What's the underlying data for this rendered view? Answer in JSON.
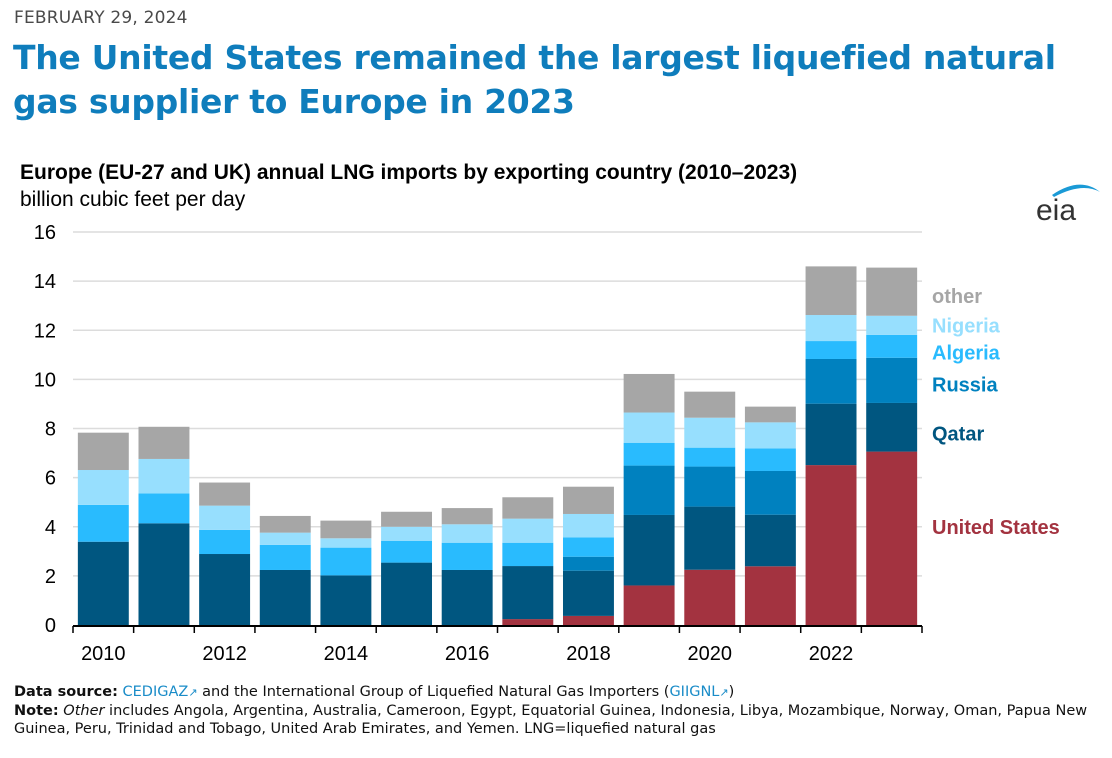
{
  "header": {
    "date": "FEBRUARY 29, 2024",
    "headline": "The United States remained the largest liquefied natural gas supplier to Europe in 2023"
  },
  "logo": {
    "text": "eia",
    "icon": "eia-logo-icon",
    "arc_color": "#1a9ad6",
    "text_color": "#333333"
  },
  "footer": {
    "source_label": "Data source:",
    "source_link1": "CEDIGAZ",
    "source_mid": " and the International Group of Liquefied Natural Gas Importers (",
    "source_link2": "GIIGNL",
    "source_end": ")",
    "note_label": "Note:",
    "note_italic": "Other",
    "note_text": " includes Angola, Argentina, Australia, Cameroon, Egypt, Equatorial Guinea, Indonesia, Libya, Mozambique, Norway, Oman, Papua New Guinea, Peru, Trinidad and Tobago, United Arab Emirates, and Yemen. LNG=liquefied natural gas",
    "external_link_icon": "external-link-icon"
  },
  "chart_data": {
    "type": "bar",
    "stacked": true,
    "title": "Europe (EU-27 and UK) annual LNG imports by exporting country (2010–2023)",
    "subtitle": "billion cubic feet per day",
    "xlabel": "",
    "ylabel": "billion cubic feet per day",
    "ylim": [
      0,
      16
    ],
    "yticks": [
      0,
      2,
      4,
      6,
      8,
      10,
      12,
      14,
      16
    ],
    "grid": true,
    "legend_placement": "right (inline labels)",
    "categories": [
      "2010",
      "2011",
      "2012",
      "2013",
      "2014",
      "2015",
      "2016",
      "2017",
      "2018",
      "2019",
      "2020",
      "2021",
      "2022",
      "2023"
    ],
    "xtick_labels": [
      "2010",
      "",
      "2012",
      "",
      "2014",
      "",
      "2016",
      "",
      "2018",
      "",
      "2020",
      "",
      "2022",
      ""
    ],
    "series": [
      {
        "name": "United States",
        "color": "#a33340",
        "values": [
          0,
          0,
          0,
          0,
          0,
          0,
          0,
          0.24,
          0.37,
          1.61,
          2.25,
          2.39,
          6.51,
          7.06
        ]
      },
      {
        "name": "Qatar",
        "color": "#005680",
        "values": [
          3.39,
          4.14,
          2.89,
          2.24,
          2.02,
          2.54,
          2.24,
          2.16,
          1.84,
          2.87,
          2.57,
          2.1,
          2.5,
          1.98
        ]
      },
      {
        "name": "Russia",
        "color": "#0081bf",
        "values": [
          0,
          0,
          0,
          0,
          0,
          0,
          0,
          0,
          0.57,
          2.01,
          1.63,
          1.78,
          1.82,
          1.84
        ]
      },
      {
        "name": "Algeria",
        "color": "#29bbfe",
        "values": [
          1.5,
          1.22,
          0.98,
          1.02,
          1.13,
          0.89,
          1.11,
          0.95,
          0.79,
          0.93,
          0.77,
          0.92,
          0.73,
          0.93
        ]
      },
      {
        "name": "Nigeria",
        "color": "#97dffe",
        "values": [
          1.42,
          1.4,
          0.99,
          0.5,
          0.38,
          0.57,
          0.75,
          0.98,
          0.95,
          1.23,
          1.22,
          1.06,
          1.06,
          0.78
        ]
      },
      {
        "name": "other",
        "color": "#a6a6a6",
        "values": [
          1.52,
          1.31,
          0.94,
          0.68,
          0.72,
          0.61,
          0.66,
          0.87,
          1.11,
          1.57,
          1.06,
          0.64,
          1.98,
          1.96
        ]
      }
    ],
    "totals": [
      7.83,
      8.07,
      5.8,
      4.44,
      4.25,
      4.61,
      4.76,
      5.2,
      5.63,
      10.22,
      9.5,
      8.89,
      14.6,
      14.55
    ],
    "legend": [
      {
        "label": "other",
        "color": "#a6a6a6",
        "anchor_value": 13.4
      },
      {
        "label": "Nigeria",
        "color": "#97dffe",
        "anchor_value": 12.2
      },
      {
        "label": "Algeria",
        "color": "#29bbfe",
        "anchor_value": 11.1
      },
      {
        "label": "Russia",
        "color": "#0081bf",
        "anchor_value": 9.8
      },
      {
        "label": "Qatar",
        "color": "#005680",
        "anchor_value": 7.8
      },
      {
        "label": "United States",
        "color": "#a33340",
        "anchor_value": 4.0
      }
    ]
  }
}
